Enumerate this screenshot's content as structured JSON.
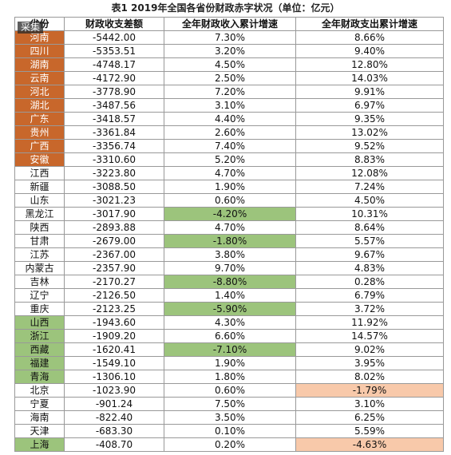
{
  "title": "表1 2019年全国各省份财政赤字状况（单位：亿元）",
  "watermark": "采集",
  "table": {
    "header": [
      "省份",
      "财政收支差额",
      "全年财政收入累计增速",
      "全年财政支出累计增速"
    ],
    "rows": [
      [
        "河南",
        "-5442.00",
        "7.30%",
        "8.66%"
      ],
      [
        "四川",
        "-5353.51",
        "3.20%",
        "9.40%"
      ],
      [
        "湖南",
        "-4748.17",
        "4.50%",
        "12.80%"
      ],
      [
        "云南",
        "-4172.90",
        "2.50%",
        "14.03%"
      ],
      [
        "河北",
        "-3778.90",
        "7.20%",
        "9.91%"
      ],
      [
        "湖北",
        "-3487.56",
        "3.10%",
        "6.97%"
      ],
      [
        "广东",
        "-3418.57",
        "4.40%",
        "9.35%"
      ],
      [
        "贵州",
        "-3361.84",
        "2.60%",
        "13.02%"
      ],
      [
        "广西",
        "-3356.74",
        "7.40%",
        "9.52%"
      ],
      [
        "安徽",
        "-3310.60",
        "5.20%",
        "8.83%"
      ],
      [
        "江西",
        "-3223.80",
        "4.70%",
        "12.08%"
      ],
      [
        "新疆",
        "-3088.50",
        "1.90%",
        "7.24%"
      ],
      [
        "山东",
        "-3021.23",
        "0.60%",
        "4.50%"
      ],
      [
        "黑龙江",
        "-3017.90",
        "-4.20%",
        "10.31%"
      ],
      [
        "陕西",
        "-2893.88",
        "4.70%",
        "8.64%"
      ],
      [
        "甘肃",
        "-2679.00",
        "-1.80%",
        "5.57%"
      ],
      [
        "江苏",
        "-2367.00",
        "3.80%",
        "9.67%"
      ],
      [
        "内蒙古",
        "-2357.90",
        "9.70%",
        "4.83%"
      ],
      [
        "吉林",
        "-2170.27",
        "-8.80%",
        "0.28%"
      ],
      [
        "辽宁",
        "-2126.50",
        "1.40%",
        "6.79%"
      ],
      [
        "重庆",
        "-2123.25",
        "-5.90%",
        "3.72%"
      ],
      [
        "山西",
        "-1943.60",
        "4.30%",
        "11.92%"
      ],
      [
        "浙江",
        "-1909.20",
        "6.60%",
        "14.57%"
      ],
      [
        "西藏",
        "-1620.41",
        "-7.10%",
        "9.02%"
      ],
      [
        "福建",
        "-1549.10",
        "1.90%",
        "3.95%"
      ],
      [
        "青海",
        "-1306.10",
        "1.80%",
        "8.02%"
      ],
      [
        "北京",
        "-1023.90",
        "0.60%",
        "-1.79%"
      ],
      [
        "宁夏",
        "-901.24",
        "7.50%",
        "3.10%"
      ],
      [
        "海南",
        "-822.40",
        "3.50%",
        "6.25%"
      ],
      [
        "天津",
        "-683.30",
        "0.10%",
        "5.59%"
      ],
      [
        "上海",
        "-408.70",
        "0.20%",
        "-4.63%"
      ]
    ],
    "province_fill": [
      "#c8672b",
      "#c8672b",
      "#c8672b",
      "#c8672b",
      "#c8672b",
      "#c8672b",
      "#c8672b",
      "#c8672b",
      "#c8672b",
      "#c8672b",
      null,
      null,
      null,
      null,
      null,
      null,
      null,
      null,
      null,
      null,
      null,
      "#9cc47c",
      "#9cc47c",
      "#9cc47c",
      "#9cc47c",
      "#9cc47c",
      null,
      null,
      null,
      null,
      "#9cc47c"
    ],
    "negative_fill": [
      "#9cc47c",
      "#f8c9aa"
    ]
  }
}
